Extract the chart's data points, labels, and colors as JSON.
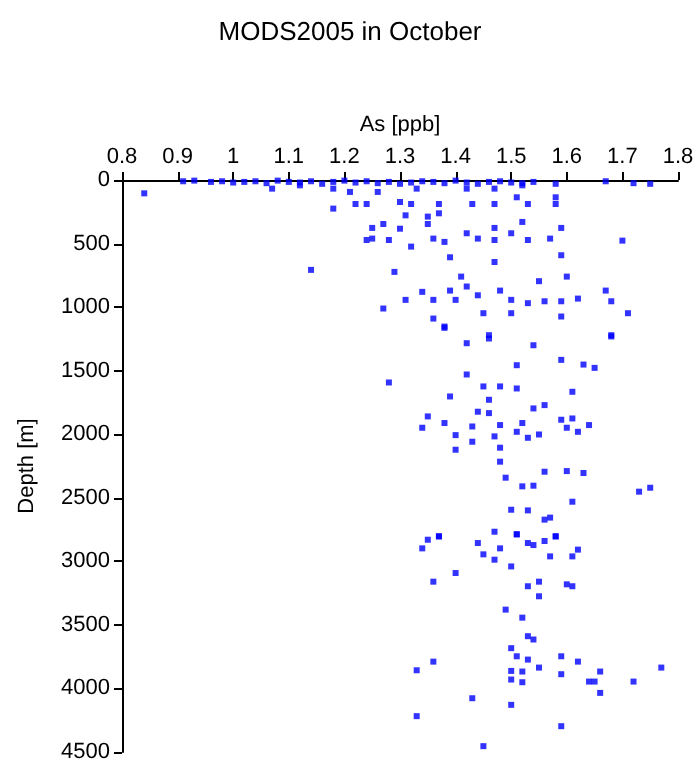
{
  "chart_data": {
    "type": "scatter",
    "title": "MODS2005 in October",
    "xlabel": "As [ppb]",
    "ylabel": "Depth [m]",
    "xlim": [
      0.8,
      1.8
    ],
    "xticks": [
      0.8,
      0.9,
      1,
      1.1,
      1.2,
      1.3,
      1.4,
      1.5,
      1.6,
      1.7,
      1.8
    ],
    "ylim": [
      4500,
      0
    ],
    "yticks": [
      0,
      500,
      1000,
      1500,
      2000,
      2500,
      3000,
      3500,
      4000,
      4500
    ],
    "grid": false,
    "marker": "square",
    "series": [
      {
        "color": "#0000ff",
        "x": [
          0.84,
          0.91,
          0.93,
          0.96,
          0.98,
          1.0,
          1.02,
          1.04,
          1.06,
          1.08,
          1.1,
          1.12,
          1.14,
          1.16,
          1.18,
          1.2,
          1.22,
          1.24,
          1.26,
          1.28,
          1.3,
          1.32,
          1.34,
          1.36,
          1.38,
          1.4,
          1.42,
          1.44,
          1.46,
          1.48,
          1.5,
          1.52,
          1.54,
          1.58,
          1.67,
          1.72,
          1.75,
          1.07,
          1.12,
          1.18,
          1.21,
          1.26,
          1.33,
          1.42,
          1.47,
          1.52,
          1.18,
          1.22,
          1.24,
          1.3,
          1.32,
          1.37,
          1.43,
          1.47,
          1.51,
          1.53,
          1.58,
          1.58,
          1.31,
          1.35,
          1.37,
          1.52,
          1.35,
          1.25,
          1.27,
          1.3,
          1.24,
          1.25,
          1.28,
          1.32,
          1.36,
          1.38,
          1.42,
          1.44,
          1.47,
          1.47,
          1.5,
          1.53,
          1.57,
          1.59,
          1.7,
          1.39,
          1.47,
          1.59,
          1.14,
          1.29,
          1.41,
          1.6,
          1.55,
          1.31,
          1.34,
          1.36,
          1.39,
          1.4,
          1.42,
          1.44,
          1.48,
          1.5,
          1.53,
          1.56,
          1.59,
          1.62,
          1.67,
          1.68,
          1.27,
          1.36,
          1.45,
          1.5,
          1.59,
          1.71,
          1.38,
          1.46,
          1.68,
          1.38,
          1.42,
          1.46,
          1.54,
          1.68,
          1.51,
          1.59,
          1.63,
          1.65,
          1.28,
          1.42,
          1.45,
          1.48,
          1.51,
          1.61,
          1.39,
          1.46,
          1.44,
          1.46,
          1.54,
          1.56,
          1.35,
          1.34,
          1.38,
          1.43,
          1.48,
          1.52,
          1.59,
          1.64,
          1.61,
          1.4,
          1.43,
          1.47,
          1.51,
          1.53,
          1.55,
          1.6,
          1.62,
          1.4,
          1.48,
          1.48,
          1.49,
          1.52,
          1.56,
          1.54,
          1.6,
          1.63,
          1.61,
          1.73,
          1.75,
          1.5,
          1.53,
          1.56,
          1.57,
          1.37,
          1.47,
          1.51,
          1.58,
          1.34,
          1.35,
          1.37,
          1.44,
          1.45,
          1.47,
          1.5,
          1.48,
          1.51,
          1.53,
          1.54,
          1.56,
          1.57,
          1.58,
          1.61,
          1.62,
          1.4,
          1.36,
          1.53,
          1.55,
          1.6,
          1.61,
          1.55,
          1.49,
          1.52,
          1.53,
          1.54,
          1.5,
          1.51,
          1.53,
          1.59,
          1.62,
          1.33,
          1.36,
          1.5,
          1.52,
          1.55,
          1.59,
          1.66,
          1.77,
          1.5,
          1.52,
          1.64,
          1.65,
          1.72,
          1.66,
          1.43,
          1.5,
          1.33,
          1.59,
          1.45
        ],
        "values": [
          105,
          10,
          5,
          15,
          10,
          20,
          15,
          10,
          25,
          5,
          15,
          20,
          10,
          30,
          15,
          5,
          20,
          10,
          25,
          15,
          30,
          20,
          10,
          15,
          25,
          5,
          20,
          30,
          15,
          10,
          20,
          25,
          15,
          30,
          10,
          25,
          30,
          68,
          42,
          68,
          94,
          94,
          68,
          68,
          68,
          42,
          225,
          189,
          189,
          173,
          189,
          189,
          189,
          189,
          136,
          189,
          136,
          189,
          278,
          288,
          262,
          330,
          346,
          377,
          346,
          383,
          472,
          461,
          472,
          524,
          461,
          487,
          419,
          461,
          377,
          472,
          419,
          472,
          461,
          377,
          477,
          608,
          645,
          592,
          707,
          723,
          760,
          760,
          796,
          943,
          880,
          943,
          870,
          943,
          838,
          907,
          870,
          943,
          969,
          954,
          954,
          933,
          870,
          954,
          1011,
          1090,
          1048,
          1048,
          1074,
          1048,
          1153,
          1221,
          1221,
          1163,
          1284,
          1247,
          1300,
          1231,
          1457,
          1415,
          1452,
          1478,
          1593,
          1530,
          1624,
          1624,
          1640,
          1666,
          1703,
          1729,
          1823,
          1834,
          1797,
          1771,
          1860,
          1949,
          1912,
          1939,
          1928,
          1912,
          1886,
          1928,
          1876,
          2007,
          2059,
          2017,
          1981,
          2028,
          2002,
          1949,
          1981,
          2122,
          2106,
          2216,
          2342,
          2410,
          2295,
          2405,
          2290,
          2305,
          2531,
          2452,
          2421,
          2594,
          2599,
          2672,
          2656,
          2803,
          2767,
          2787,
          2803,
          2898,
          2830,
          2804,
          2856,
          2945,
          2987,
          3040,
          2898,
          2788,
          2856,
          2872,
          2840,
          2961,
          2804,
          2961,
          2908,
          3092,
          3160,
          3196,
          3160,
          3181,
          3196,
          3275,
          3380,
          3443,
          3589,
          3615,
          3683,
          3747,
          3773,
          3747,
          3789,
          3857,
          3789,
          3862,
          3867,
          3836,
          3888,
          3867,
          3836,
          3930,
          3951,
          3946,
          3946,
          3946,
          4035,
          4077,
          4129,
          4218,
          4297,
          4454
        ]
      }
    ]
  }
}
